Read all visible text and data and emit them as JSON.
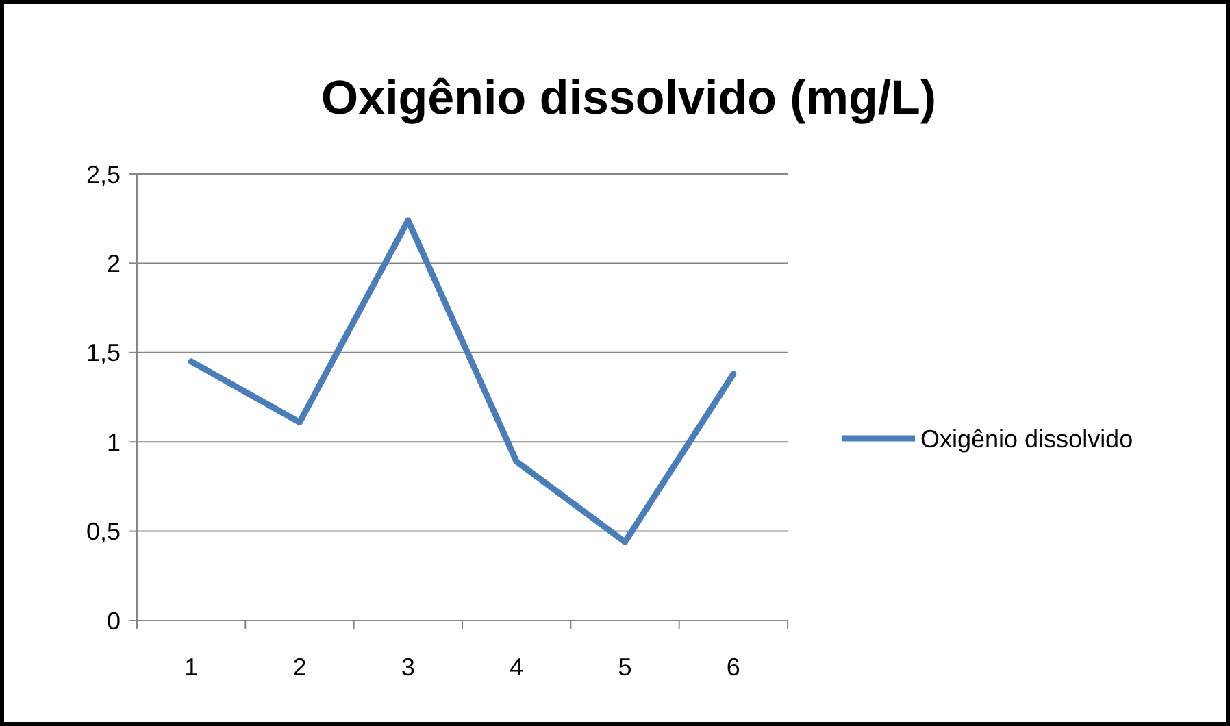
{
  "chart_data": {
    "type": "line",
    "title": "Oxigênio dissolvido (mg/L)",
    "categories": [
      "1",
      "2",
      "3",
      "4",
      "5",
      "6"
    ],
    "series": [
      {
        "name": "Oxigênio dissolvido",
        "color": "#4a7ebb",
        "values": [
          1.45,
          1.11,
          2.24,
          0.89,
          0.44,
          1.38
        ]
      }
    ],
    "ylim": [
      0,
      2.5
    ],
    "yticks": [
      0,
      {
        "value": 0.5,
        "label": "0,5"
      },
      1,
      {
        "value": 1.5,
        "label": "1,5"
      },
      2,
      {
        "value": 2.5,
        "label": "2,5"
      }
    ],
    "grid": "y",
    "legend": "right",
    "marker": "none",
    "line_style": "solid"
  }
}
